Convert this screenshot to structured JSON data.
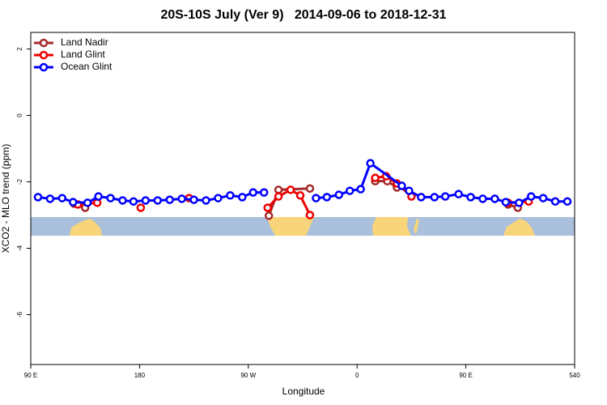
{
  "chart_data": {
    "type": "line",
    "title": "20S-10S July (Ver 9)   2014-09-06 to 2018-12-31",
    "x_label": "Longitude",
    "y_label": "XCO2 - MLO trend (ppm)",
    "xlim": [
      90,
      540
    ],
    "ylim": [
      -7.5,
      2.5
    ],
    "xticks": [
      {
        "value": 90,
        "label": "90 E"
      },
      180,
      {
        "value": 270,
        "label": "90 W"
      },
      {
        "value": 360,
        "label": "0"
      },
      {
        "value": 450,
        "label": "90 E"
      },
      540
    ],
    "yticks": [
      2,
      0,
      -2,
      -4,
      -6
    ],
    "legend": "top-left",
    "series": [
      {
        "name": "Land Nadir",
        "color": "#a52a2a",
        "x": [
          126,
          135,
          null,
          287,
          295,
          321,
          null,
          375,
          385,
          393,
          null,
          485,
          493
        ],
        "values": [
          -2.66,
          -2.78,
          null,
          -3.02,
          -2.24,
          -2.2,
          null,
          -1.98,
          -1.98,
          -2.17,
          null,
          -2.68,
          -2.78
        ]
      },
      {
        "name": "Land Glint",
        "color": "#ee0000",
        "x": [
          129,
          145,
          null,
          181,
          null,
          221,
          null,
          286,
          295,
          305,
          313,
          321,
          null,
          375,
          384,
          393,
          405,
          null,
          485,
          502
        ],
        "values": [
          -2.68,
          -2.63,
          null,
          -2.78,
          null,
          -2.49,
          null,
          -2.78,
          -2.44,
          -2.24,
          -2.41,
          -3.0,
          null,
          -1.88,
          -1.83,
          -2.05,
          -2.44,
          null,
          -2.63,
          -2.59
        ]
      },
      {
        "name": "Ocean Glint",
        "color": "#0000ff",
        "x": [
          96,
          106,
          116,
          125,
          137,
          146,
          156,
          166,
          175,
          185,
          195,
          205,
          215,
          225,
          235,
          245,
          255,
          265,
          274,
          283,
          null,
          326,
          335,
          345,
          354,
          363,
          371,
          397,
          403,
          413,
          424,
          433,
          444,
          454,
          464,
          474,
          483,
          494,
          504,
          514,
          524,
          534
        ],
        "values": [
          -2.46,
          -2.51,
          -2.49,
          -2.61,
          -2.63,
          -2.44,
          -2.49,
          -2.56,
          -2.59,
          -2.56,
          -2.56,
          -2.54,
          -2.51,
          -2.54,
          -2.56,
          -2.49,
          -2.41,
          -2.46,
          -2.32,
          -2.32,
          null,
          -2.49,
          -2.46,
          -2.39,
          -2.27,
          -2.22,
          -1.44,
          -2.12,
          -2.27,
          -2.46,
          -2.46,
          -2.44,
          -2.37,
          -2.46,
          -2.51,
          -2.51,
          -2.61,
          -2.63,
          -2.44,
          -2.49,
          -2.59,
          -2.59
        ]
      }
    ]
  }
}
